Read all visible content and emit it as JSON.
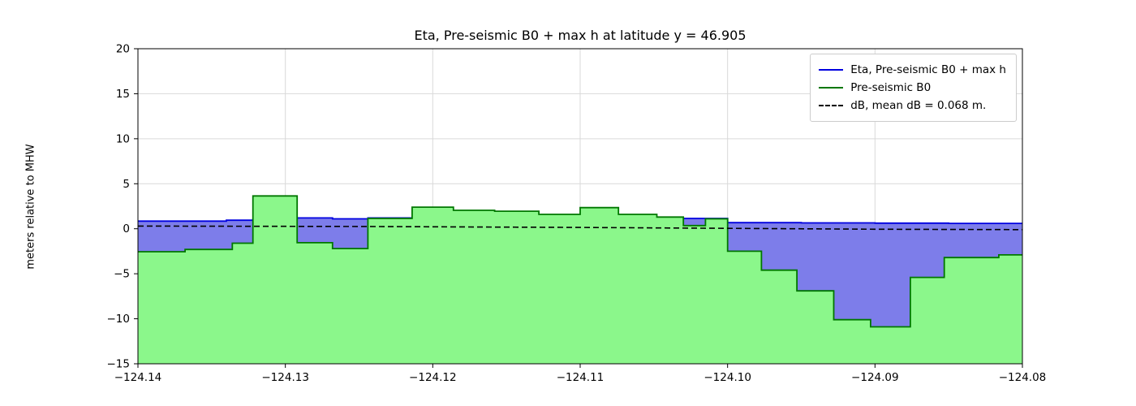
{
  "chart_data": {
    "type": "area",
    "title": "Eta, Pre-seismic B0 + max h at latitude y = 46.905",
    "ylabel": "meters relative to MHW",
    "xlabel": "",
    "xlim": [
      -124.14,
      -124.08
    ],
    "ylim": [
      -15,
      20
    ],
    "grid": true,
    "legend_position": "upper right",
    "xtick_values": [
      -124.14,
      -124.13,
      -124.12,
      -124.11,
      -124.1,
      -124.09,
      -124.08
    ],
    "xtick_labels": [
      "−124.14",
      "−124.13",
      "−124.12",
      "−124.11",
      "−124.10",
      "−124.09",
      "−124.08"
    ],
    "ytick_values": [
      -15,
      -10,
      -5,
      0,
      5,
      10,
      15,
      20
    ],
    "ytick_labels": [
      "−15",
      "−10",
      "−5",
      "0",
      "5",
      "10",
      "15",
      "20"
    ],
    "series": [
      {
        "name": "Eta, Pre-seismic B0 + max h",
        "render": "step-area",
        "dash": false,
        "line_color": "#0000e0",
        "fill_color": "#7d7dea",
        "points": [
          [
            -124.14,
            0.85
          ],
          [
            -124.134,
            0.95
          ],
          [
            -124.1322,
            1.05
          ],
          [
            -124.1292,
            1.2
          ],
          [
            -124.1268,
            1.1
          ],
          [
            -124.1244,
            1.2
          ],
          [
            -124.1214,
            1.15
          ],
          [
            -124.11,
            1.1
          ],
          [
            -124.103,
            1.15
          ],
          [
            -124.1,
            0.68
          ],
          [
            -124.095,
            0.65
          ],
          [
            -124.09,
            0.62
          ],
          [
            -124.085,
            0.6
          ]
        ]
      },
      {
        "name": "Pre-seismic B0",
        "render": "step-area",
        "dash": false,
        "line_color": "#007700",
        "fill_color": "#8bf78b",
        "points": [
          [
            -124.14,
            -2.55
          ],
          [
            -124.1368,
            -2.3
          ],
          [
            -124.1336,
            -1.6
          ],
          [
            -124.1322,
            3.65
          ],
          [
            -124.1292,
            -1.55
          ],
          [
            -124.1268,
            -2.2
          ],
          [
            -124.1244,
            1.15
          ],
          [
            -124.1214,
            2.4
          ],
          [
            -124.1186,
            2.05
          ],
          [
            -124.1158,
            1.95
          ],
          [
            -124.1128,
            1.6
          ],
          [
            -124.11,
            2.35
          ],
          [
            -124.1074,
            1.6
          ],
          [
            -124.1048,
            1.3
          ],
          [
            -124.103,
            0.35
          ],
          [
            -124.1015,
            1.1
          ],
          [
            -124.1,
            -2.5
          ],
          [
            -124.0977,
            -4.6
          ],
          [
            -124.0953,
            -6.9
          ],
          [
            -124.0928,
            -10.1
          ],
          [
            -124.0903,
            -10.9
          ],
          [
            -124.0876,
            -5.4
          ],
          [
            -124.0853,
            -3.2
          ],
          [
            -124.0816,
            -2.9
          ]
        ]
      },
      {
        "name": "dB, mean dB = 0.068 m.",
        "render": "dashed-line",
        "dash": true,
        "line_color": "#000000",
        "mean_dB_m": 0.068,
        "points": [
          [
            -124.14,
            0.3
          ],
          [
            -124.125,
            0.25
          ],
          [
            -124.11,
            0.15
          ],
          [
            -124.1,
            0.05
          ],
          [
            -124.09,
            -0.05
          ],
          [
            -124.08,
            -0.1
          ]
        ]
      }
    ]
  }
}
